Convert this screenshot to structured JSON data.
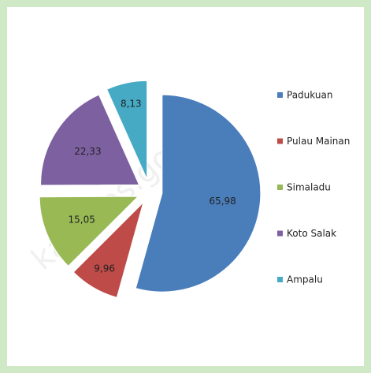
{
  "chart_data": {
    "type": "pie",
    "categories": [
      "Padukuan",
      "Pulau Mainan",
      "Simaladu",
      "Koto Salak",
      "Ampalu"
    ],
    "values": [
      65.98,
      9.96,
      15.05,
      22.33,
      8.13
    ],
    "value_labels": [
      "65,98",
      "9,96",
      "15,05",
      "22,33",
      "8,13"
    ],
    "colors": [
      "#4a7ebb",
      "#be4b48",
      "#98b954",
      "#7d60a0",
      "#46aac5"
    ],
    "legend": "right",
    "watermark": "kab.bps.go.id"
  }
}
